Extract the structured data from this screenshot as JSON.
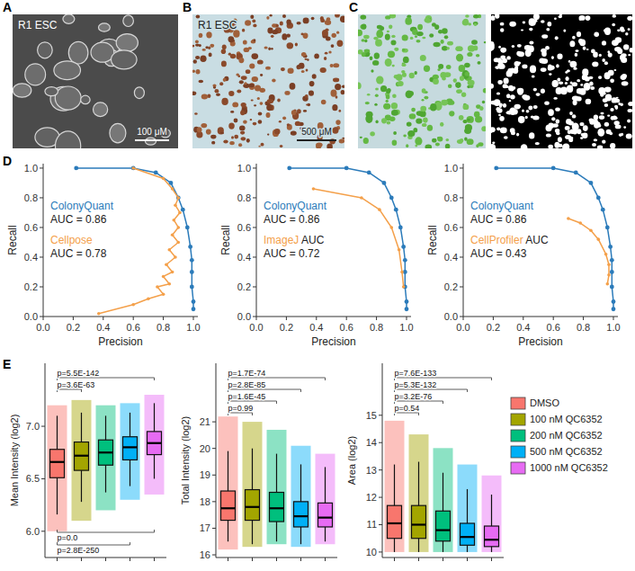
{
  "panel_labels": [
    "A",
    "B",
    "C",
    "D",
    "E"
  ],
  "image_texts": [
    {
      "label": "R1 ESC",
      "scale_bar": "100 μM"
    },
    {
      "label": "R1 ESC",
      "scale_bar": "500 μM"
    }
  ],
  "chart_data": [
    {
      "type": "line",
      "x_label": "Precision",
      "y_label": "Recall",
      "xlim": [
        0,
        1.03
      ],
      "ylim": [
        0,
        1.03
      ],
      "xticks": [
        {
          "value": 0,
          "label": "0.0"
        },
        0.2,
        0.4,
        0.6,
        0.8,
        {
          "value": 1,
          "label": "1.0"
        }
      ],
      "yticks": [
        {
          "value": 0,
          "label": "0.0"
        },
        0.2,
        0.4,
        0.6,
        0.8,
        {
          "value": 1,
          "label": "1.0"
        }
      ],
      "grid": false,
      "legend": "left",
      "series": [
        {
          "name": "ColonyQuant",
          "note": "AUC = 0.86",
          "color": "#2b7bba",
          "marker": "circle",
          "line_style": "solid",
          "x": [
            0.22,
            0.6,
            0.75,
            0.85,
            0.9,
            0.93,
            0.96,
            0.98,
            0.99,
            0.99,
            0.99,
            1.0,
            1.0
          ],
          "values": [
            1.0,
            1.0,
            0.97,
            0.9,
            0.8,
            0.72,
            0.6,
            0.47,
            0.38,
            0.3,
            0.2,
            0.1,
            0.05
          ]
        },
        {
          "name": "Cellpose",
          "note": "AUC = 0.78",
          "color": "#f4a04a",
          "marker": "circle",
          "line_style": "solid",
          "x": [
            0.6,
            0.8,
            0.86,
            0.9,
            0.88,
            0.91,
            0.87,
            0.9,
            0.86,
            0.9,
            0.84,
            0.88,
            0.82,
            0.86,
            0.8,
            0.84,
            0.76,
            0.8,
            0.7,
            0.6,
            0.37
          ],
          "values": [
            1.0,
            0.93,
            0.86,
            0.8,
            0.75,
            0.7,
            0.65,
            0.6,
            0.55,
            0.5,
            0.45,
            0.4,
            0.35,
            0.3,
            0.27,
            0.22,
            0.2,
            0.15,
            0.12,
            0.08,
            0.02
          ]
        }
      ]
    },
    {
      "type": "line",
      "x_label": "Precision",
      "y_label": "Recall",
      "xlim": [
        0,
        1.03
      ],
      "ylim": [
        0,
        1.03
      ],
      "xticks": [
        {
          "value": 0,
          "label": "0.0"
        },
        0.2,
        0.4,
        0.6,
        0.8,
        {
          "value": 1,
          "label": "1.0"
        }
      ],
      "yticks": [
        {
          "value": 0,
          "label": "0.0"
        },
        0.2,
        0.4,
        0.6,
        0.8,
        {
          "value": 1,
          "label": "1.0"
        }
      ],
      "grid": false,
      "legend": "left",
      "series": [
        {
          "name": "ColonyQuant",
          "note": "AUC = 0.86",
          "color": "#2b7bba",
          "marker": "circle",
          "line_style": "solid",
          "x": [
            0.22,
            0.6,
            0.75,
            0.85,
            0.9,
            0.93,
            0.96,
            0.98,
            0.99,
            0.99,
            0.99,
            1.0,
            1.0
          ],
          "values": [
            1.0,
            1.0,
            0.97,
            0.9,
            0.8,
            0.72,
            0.6,
            0.47,
            0.38,
            0.3,
            0.2,
            0.1,
            0.05
          ]
        },
        {
          "name": "ImageJ",
          "suffix": "AUC",
          "note": "AUC = 0.72",
          "color": "#f4a04a",
          "marker": "circle",
          "line_style": "solid",
          "x": [
            0.38,
            0.7,
            0.82,
            0.9,
            0.95,
            0.97,
            0.98
          ],
          "values": [
            0.86,
            0.8,
            0.72,
            0.6,
            0.45,
            0.3,
            0.2
          ]
        }
      ]
    },
    {
      "type": "line",
      "x_label": "Precision",
      "y_label": "Recall",
      "xlim": [
        0,
        1.03
      ],
      "ylim": [
        0,
        1.03
      ],
      "xticks": [
        {
          "value": 0,
          "label": "0.0"
        },
        0.2,
        0.4,
        0.6,
        0.8,
        {
          "value": 1,
          "label": "1.0"
        }
      ],
      "yticks": [
        {
          "value": 0,
          "label": "0.0"
        },
        0.2,
        0.4,
        0.6,
        0.8,
        {
          "value": 1,
          "label": "1.0"
        }
      ],
      "grid": false,
      "legend": "left",
      "series": [
        {
          "name": "ColonyQuant",
          "note": "AUC = 0.86",
          "color": "#2b7bba",
          "marker": "circle",
          "line_style": "solid",
          "x": [
            0.22,
            0.6,
            0.75,
            0.85,
            0.9,
            0.93,
            0.96,
            0.98,
            0.99,
            0.99,
            0.99,
            1.0,
            1.0
          ],
          "values": [
            1.0,
            1.0,
            0.97,
            0.9,
            0.8,
            0.72,
            0.6,
            0.47,
            0.38,
            0.3,
            0.2,
            0.1,
            0.05
          ]
        },
        {
          "name": "CellProfiler",
          "suffix": "AUC",
          "note": "AUC = 0.43",
          "color": "#f4a04a",
          "marker": "circle",
          "line_style": "solid",
          "x": [
            0.7,
            0.78,
            0.85,
            0.9,
            0.95,
            0.97,
            0.97,
            0.96
          ],
          "values": [
            0.66,
            0.63,
            0.58,
            0.52,
            0.42,
            0.35,
            0.28,
            0.22
          ]
        }
      ]
    },
    {
      "type": "box",
      "legend": "right",
      "tick_labels": "y",
      "grid": false,
      "categories": [
        "DMSO",
        "100 nM QC6352",
        "200 nM QC6352",
        "500 nM QC6352",
        "1000 nM QC6352"
      ],
      "colors": [
        "#f8766d",
        "#a3a500",
        "#00bf7d",
        "#00b0f6",
        "#e76bf3"
      ],
      "subplots": [
        {
          "y_label": "Mean Intensity (log2)",
          "ylim": [
            5.75,
            7.6
          ],
          "yticks": [
            {
              "value": 6,
              "label": "6.0"
            },
            6.5,
            {
              "value": 7,
              "label": "7.0"
            }
          ],
          "min": [
            6.0,
            6.1,
            6.2,
            6.3,
            6.35
          ],
          "whisker_low": [
            6.16,
            6.28,
            6.37,
            6.43,
            6.5
          ],
          "q1": [
            6.51,
            6.58,
            6.63,
            6.68,
            6.73
          ],
          "median": [
            6.66,
            6.72,
            6.75,
            6.8,
            6.84
          ],
          "q3": [
            6.78,
            6.85,
            6.87,
            6.9,
            6.95
          ],
          "whisker_high": [
            7.1,
            7.13,
            7.1,
            7.13,
            7.22
          ],
          "max": [
            7.2,
            7.25,
            7.2,
            7.22,
            7.3
          ],
          "annotations": [
            {
              "text": "p=5.5E-142",
              "from": 0,
              "to": 4,
              "side": "top"
            },
            {
              "text": "p=3.6E-63",
              "from": 0,
              "to": 1,
              "side": "top"
            },
            {
              "text": "p=0.0",
              "from": 0,
              "to": 4,
              "side": "bottom"
            },
            {
              "text": "p=2.8E-250",
              "from": 0,
              "to": 3,
              "side": "bottom"
            }
          ]
        },
        {
          "y_label": "Total Intensity (log2)",
          "ylim": [
            15.9,
            23.2
          ],
          "yticks": [
            16,
            17,
            18,
            19,
            20,
            21
          ],
          "min": [
            16.2,
            16.3,
            16.4,
            16.3,
            16.4
          ],
          "whisker_low": [
            16.5,
            16.4,
            16.5,
            16.4,
            16.5
          ],
          "q1": [
            17.3,
            17.3,
            17.25,
            17.05,
            17.05
          ],
          "median": [
            17.75,
            17.8,
            17.75,
            17.45,
            17.4
          ],
          "q3": [
            18.4,
            18.45,
            18.35,
            18.0,
            17.95
          ],
          "whisker_high": [
            19.9,
            20.0,
            19.8,
            19.4,
            19.3
          ],
          "max": [
            21.2,
            21.0,
            20.7,
            20.1,
            19.8
          ],
          "annotations": [
            {
              "text": "p=1.7E-74",
              "from": 0,
              "to": 4,
              "side": "top"
            },
            {
              "text": "p=2.8E-85",
              "from": 0,
              "to": 3,
              "side": "top"
            },
            {
              "text": "p=1.6E-45",
              "from": 0,
              "to": 2,
              "side": "top"
            },
            {
              "text": "p=0.99",
              "from": 0,
              "to": 1,
              "side": "top"
            }
          ]
        },
        {
          "y_label": "Area (log2)",
          "ylim": [
            9.8,
            16.9
          ],
          "yticks": [
            10,
            11,
            12,
            13,
            14,
            15
          ],
          "min": [
            10,
            10,
            10,
            10,
            10
          ],
          "whisker_low": [
            10,
            10,
            10,
            10,
            10
          ],
          "q1": [
            10.5,
            10.5,
            10.4,
            10.25,
            10.2
          ],
          "median": [
            11.05,
            11.0,
            10.8,
            10.55,
            10.45
          ],
          "q3": [
            11.7,
            11.7,
            11.5,
            11.05,
            10.95
          ],
          "whisker_high": [
            13.2,
            13.3,
            12.9,
            12.3,
            12.1
          ],
          "max": [
            14.8,
            14.3,
            13.8,
            13.2,
            12.8
          ],
          "annotations": [
            {
              "text": "p=7.6E-133",
              "from": 0,
              "to": 4,
              "side": "top"
            },
            {
              "text": "p=5.3E-132",
              "from": 0,
              "to": 3,
              "side": "top"
            },
            {
              "text": "p=3.2E-76",
              "from": 0,
              "to": 2,
              "side": "top"
            },
            {
              "text": "p=0.54",
              "from": 0,
              "to": 1,
              "side": "top"
            }
          ]
        }
      ]
    }
  ]
}
